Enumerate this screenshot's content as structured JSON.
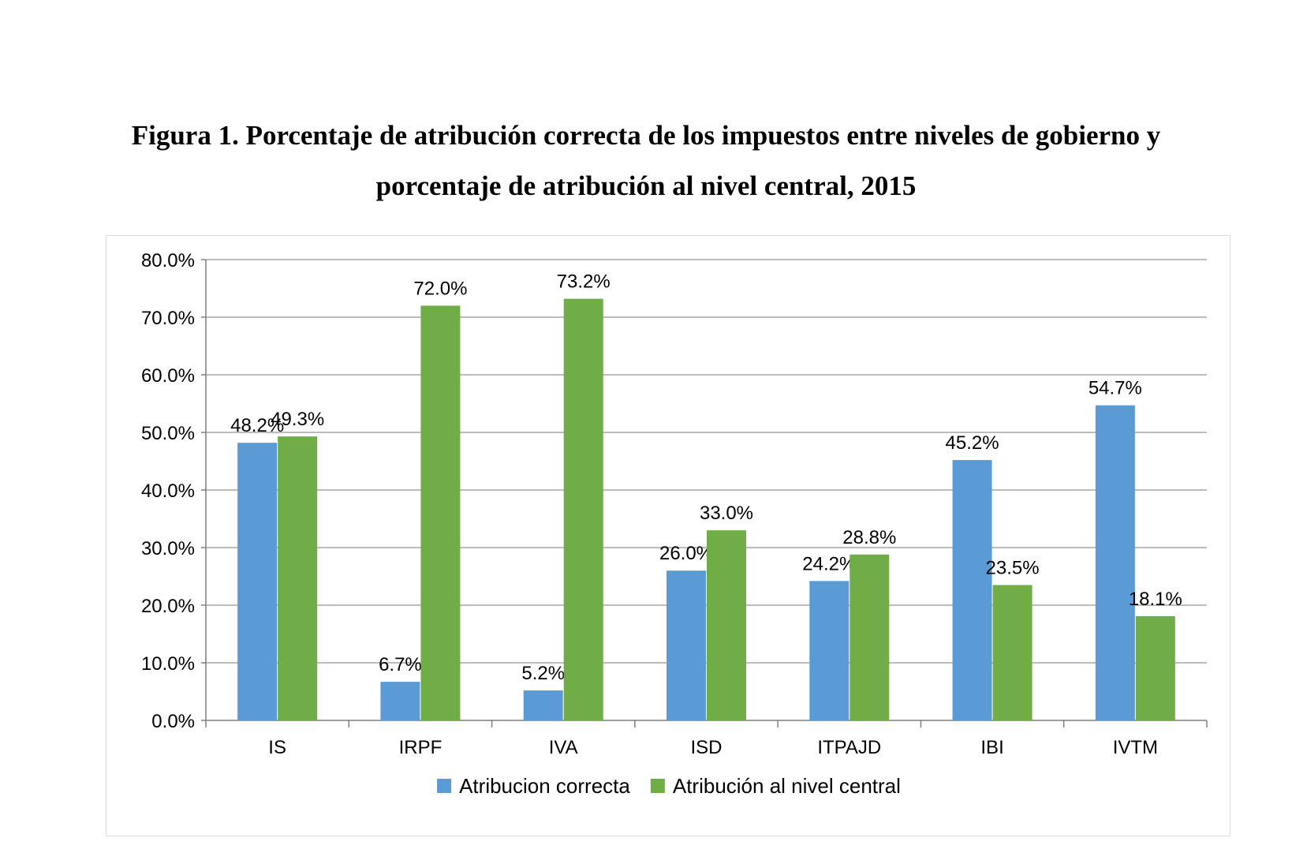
{
  "figure": {
    "title_line1": "Figura 1. Porcentaje de atribución correcta de los impuestos entre niveles de gobierno y",
    "title_line2": "porcentaje de atribución al nivel central, 2015"
  },
  "chart_data": {
    "type": "bar",
    "title": "Figura 1. Porcentaje de atribución correcta de los impuestos entre niveles de gobierno y porcentaje de atribución al nivel central, 2015",
    "categories": [
      "IS",
      "IRPF",
      "IVA",
      "ISD",
      "ITPAJD",
      "IBI",
      "IVTM"
    ],
    "series": [
      {
        "name": "Atribucion correcta",
        "color": "#5b9bd5",
        "values": [
          48.2,
          6.7,
          5.2,
          26.0,
          24.2,
          45.2,
          54.7
        ]
      },
      {
        "name": "Atribución al nivel central",
        "color": "#70ad47",
        "values": [
          49.3,
          72.0,
          73.2,
          33.0,
          28.8,
          23.5,
          18.1
        ]
      }
    ],
    "ylim": [
      0,
      80
    ],
    "yticks": [
      0,
      10,
      20,
      30,
      40,
      50,
      60,
      70,
      80
    ],
    "ytick_labels": [
      "0.0%",
      "10.0%",
      "20.0%",
      "30.0%",
      "40.0%",
      "50.0%",
      "60.0%",
      "70.0%",
      "80.0%"
    ],
    "data_labels": [
      [
        "48.2%",
        "6.7%",
        "5.2%",
        "26.0%",
        "24.2%",
        "45.2%",
        "54.7%"
      ],
      [
        "49.3%",
        "72.0%",
        "73.2%",
        "33.0%",
        "28.8%",
        "23.5%",
        "18.1%"
      ]
    ],
    "grid": true,
    "legend": "bottom",
    "xlabel": "",
    "ylabel": ""
  }
}
